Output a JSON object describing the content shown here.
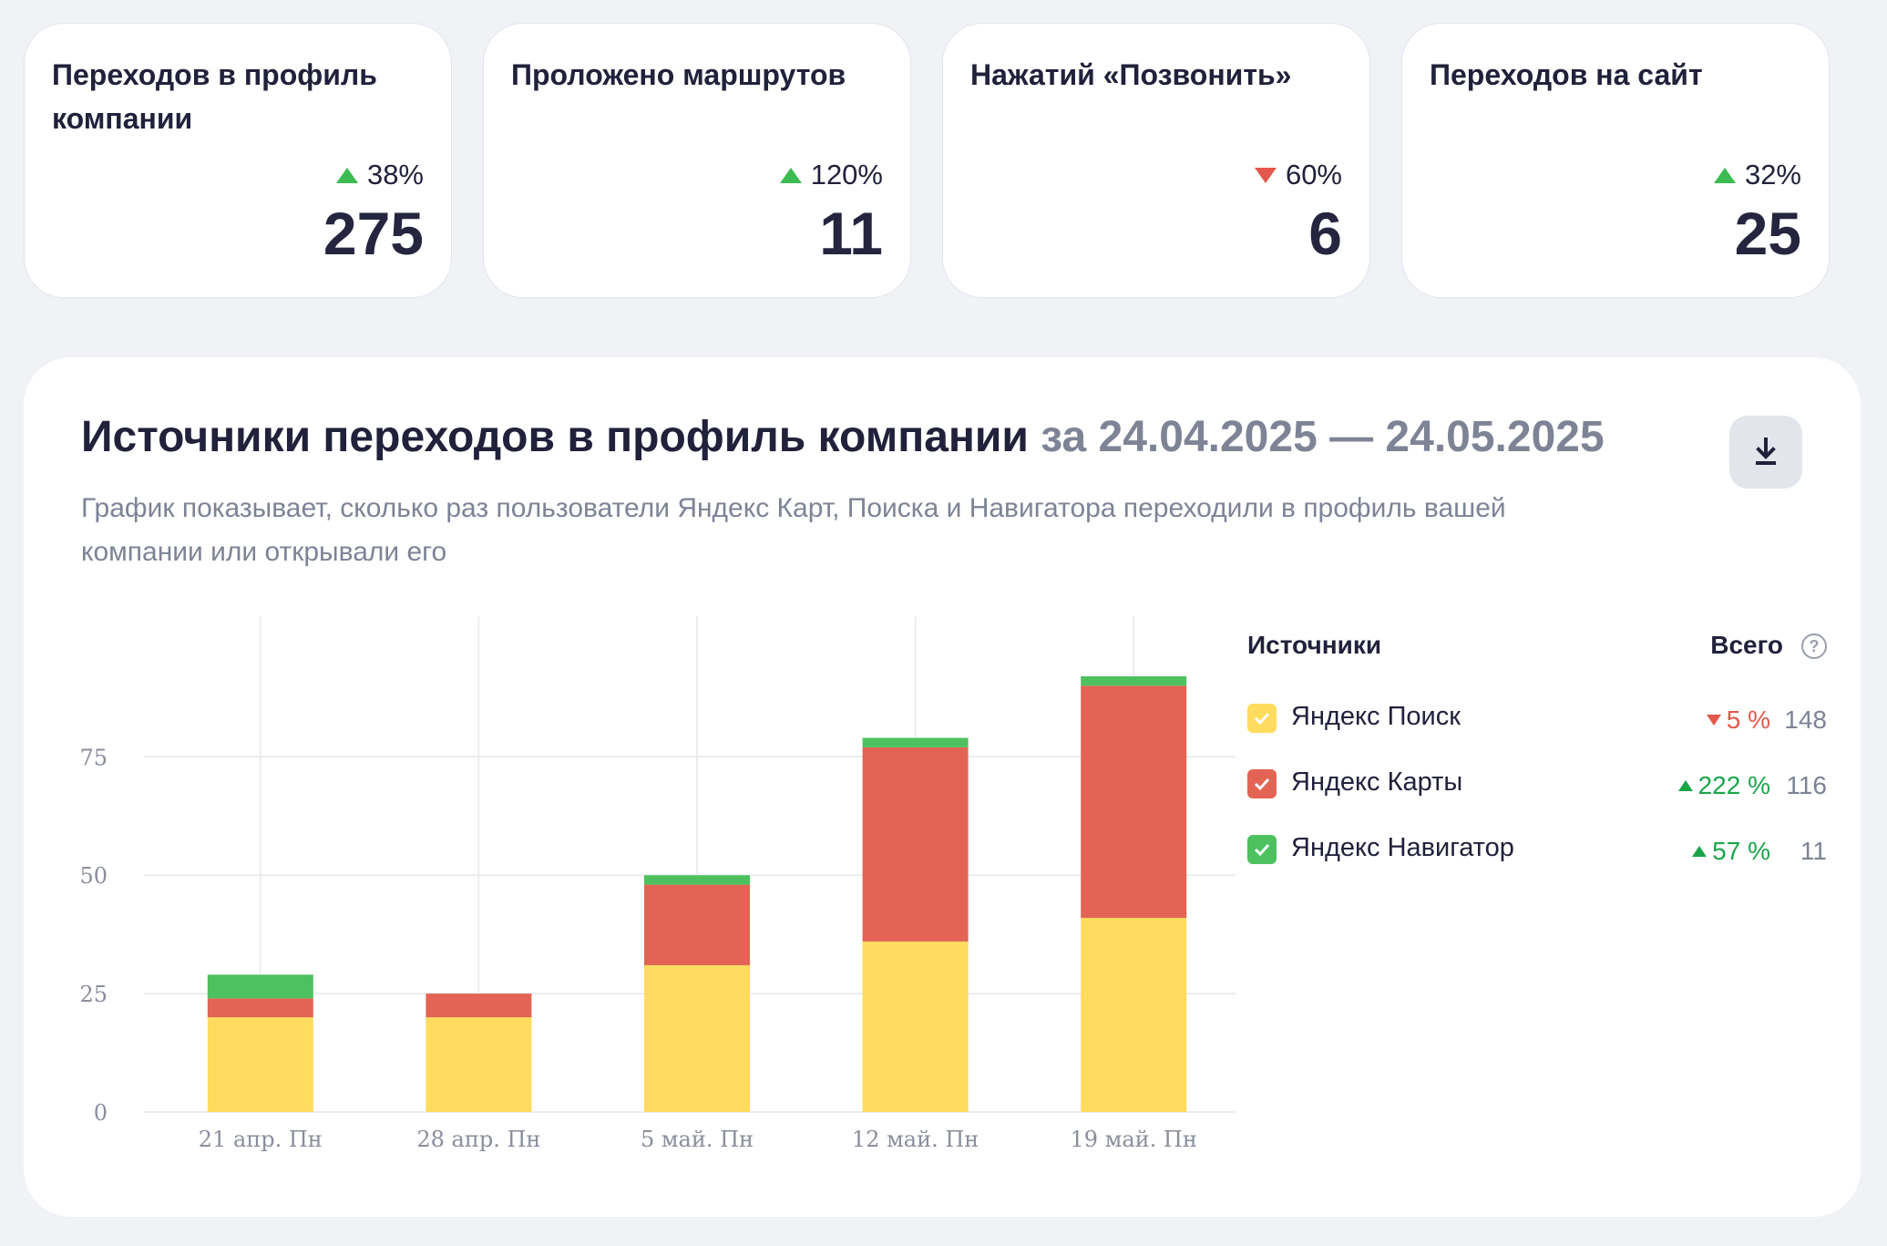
{
  "kpis": [
    {
      "title": "Переходов в профиль компании",
      "change": "38%",
      "direction": "up",
      "value": "275"
    },
    {
      "title": "Проложено маршрутов",
      "change": "120%",
      "direction": "up",
      "value": "11"
    },
    {
      "title": "Нажатий «Позвонить»",
      "change": "60%",
      "direction": "down",
      "value": "6"
    },
    {
      "title": "Переходов на сайт",
      "change": "32%",
      "direction": "up",
      "value": "25"
    }
  ],
  "panel": {
    "title": "Источники переходов в профиль компании",
    "period": "за 24.04.2025 — 24.05.2025",
    "subtitle": "График показывает, сколько раз пользователи Яндекс Карт, Поиска и Навигатора переходили в профиль вашей компании или открывали его",
    "download_icon": "download-icon"
  },
  "legend": {
    "sources_label": "Источники",
    "total_label": "Всего",
    "help_icon": "question-circle-icon",
    "help_glyph": "?",
    "items": [
      {
        "name": "Яндекс Поиск",
        "change": "5 %",
        "direction": "down",
        "total": "148",
        "color": "#ffdb5e"
      },
      {
        "name": "Яндекс Карты",
        "change": "222 %",
        "direction": "up",
        "total": "116",
        "color": "#e36454"
      },
      {
        "name": "Яндекс Навигатор",
        "change": "57 %",
        "direction": "up",
        "total": "11",
        "color": "#4ec15f"
      }
    ]
  },
  "colors": {
    "up": "#3dbb53",
    "down": "#e2584b",
    "grid": "#ececf0",
    "tick": "#8a8e9c"
  },
  "chart_data": {
    "type": "bar",
    "stacked": true,
    "categories": [
      "21 апр. Пн",
      "28 апр. Пн",
      "5 май. Пн",
      "12 май. Пн",
      "19 май. Пн"
    ],
    "series": [
      {
        "name": "Яндекс Поиск",
        "color": "#ffdb5e",
        "values": [
          20,
          20,
          31,
          36,
          41
        ]
      },
      {
        "name": "Яндекс Карты",
        "color": "#e36454",
        "values": [
          4,
          5,
          17,
          41,
          49
        ]
      },
      {
        "name": "Яндекс Навигатор",
        "color": "#4ec15f",
        "values": [
          5,
          0,
          2,
          2,
          2
        ]
      }
    ],
    "yticks": [
      0,
      25,
      50,
      75
    ],
    "ylim": [
      0,
      97
    ],
    "grid": true,
    "legend": "right",
    "title": "",
    "xlabel": "",
    "ylabel": ""
  }
}
